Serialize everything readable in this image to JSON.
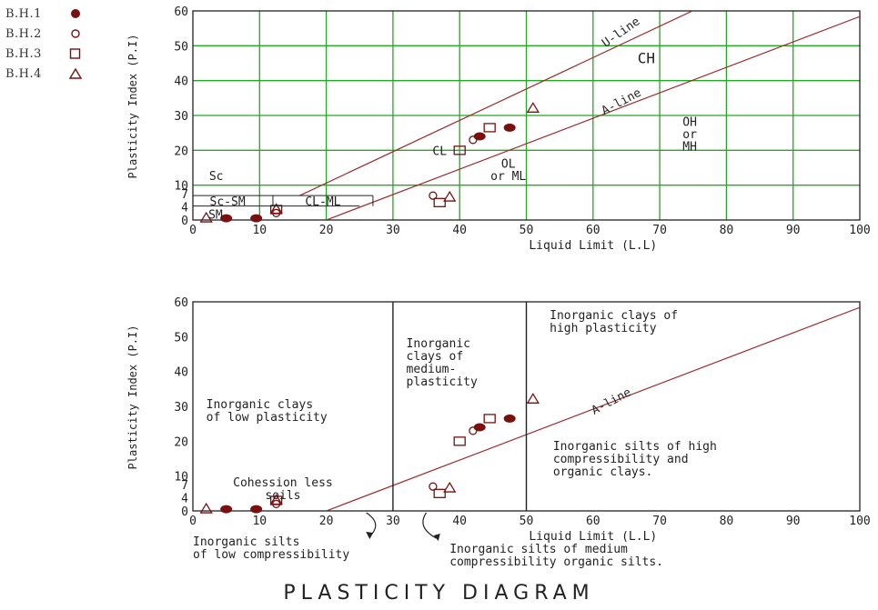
{
  "legend": [
    {
      "label": "B.H.1",
      "marker": "filled-circle"
    },
    {
      "label": "B.H.2",
      "marker": "circle"
    },
    {
      "label": "B.H.3",
      "marker": "square"
    },
    {
      "label": "B.H.4",
      "marker": "triangle"
    }
  ],
  "colors": {
    "marker": "#7a0f0f",
    "line": "#9b2a2a",
    "grid": "#22aa22",
    "frame": "#222222",
    "text": "#222222"
  },
  "diagram_title": "PLASTICITY DIAGRAM",
  "chart_data": [
    {
      "type": "scatter",
      "xlabel": "Liquid Limit (L.L)",
      "ylabel": "Plasticity Index (P.I)",
      "xlim": [
        0,
        100
      ],
      "ylim": [
        0,
        60
      ],
      "xticks": [
        "0",
        "10",
        "20",
        "30",
        "40",
        "50",
        "60",
        "70",
        "80",
        "90",
        "100"
      ],
      "yticks": [
        "0",
        "4",
        "7",
        "10",
        "20",
        "30",
        "40",
        "50",
        "60"
      ],
      "grid": true,
      "lines": [
        {
          "name": "U-line",
          "points": [
            [
              16,
              7
            ],
            [
              76,
              61
            ]
          ]
        },
        {
          "name": "A-line",
          "points": [
            [
              20,
              0
            ],
            [
              100,
              58.4
            ]
          ]
        }
      ],
      "labels": [
        "U-line",
        "CH",
        "A-line",
        "CL",
        "OH",
        "or",
        "MH",
        "OL",
        "or ML",
        "Sc",
        "Sc-SM",
        "CL-ML",
        "SM"
      ],
      "series": [
        {
          "name": "B.H.1",
          "points": [
            [
              5,
              0.5
            ],
            [
              9.5,
              0.5
            ],
            [
              43,
              24
            ],
            [
              47.5,
              26.5
            ]
          ]
        },
        {
          "name": "B.H.2",
          "points": [
            [
              12.5,
              2
            ],
            [
              36,
              7
            ],
            [
              42,
              23
            ]
          ]
        },
        {
          "name": "B.H.3",
          "points": [
            [
              12.5,
              3
            ],
            [
              37,
              5
            ],
            [
              40,
              20
            ],
            [
              44.5,
              26.5
            ]
          ]
        },
        {
          "name": "B.H.4",
          "points": [
            [
              2,
              0.5
            ],
            [
              12.5,
              3
            ],
            [
              38.5,
              6.5
            ],
            [
              51,
              32
            ]
          ]
        }
      ]
    },
    {
      "type": "scatter",
      "xlabel": "Liquid Limit (L.L)",
      "ylabel": "Plasticity Index (P.I)",
      "xlim": [
        0,
        100
      ],
      "ylim": [
        0,
        60
      ],
      "xticks": [
        "0",
        "10",
        "20",
        "30",
        "40",
        "50",
        "60",
        "70",
        "80",
        "90",
        "100"
      ],
      "yticks": [
        "0",
        "4",
        "7",
        "10",
        "20",
        "30",
        "40",
        "50",
        "60"
      ],
      "grid": false,
      "lines": [
        {
          "name": "A-line",
          "points": [
            [
              20,
              0
            ],
            [
              100,
              58.4
            ]
          ]
        }
      ],
      "dividers_x": [
        30,
        50
      ],
      "zone_labels": {
        "high_plasticity": [
          "Inorganic clays of",
          "high plasticity"
        ],
        "medium_plasticity": [
          "Inorganic",
          "clays of",
          "medium-",
          "plasticity"
        ],
        "low_plasticity": [
          "Inorganic clays",
          "of low plasticity"
        ],
        "cohesionless": [
          "Cohession less",
          "soils"
        ],
        "high_compress": [
          "Inorganic silts of high",
          "compressibility and",
          "organic clays."
        ],
        "low_compress": [
          "Inorganic silts",
          "of low compressibility"
        ],
        "medium_compress": [
          "Inorganic silts of medium",
          "compressibility organic silts."
        ]
      },
      "series": [
        {
          "name": "B.H.1",
          "points": [
            [
              5,
              0.5
            ],
            [
              9.5,
              0.5
            ],
            [
              43,
              24
            ],
            [
              47.5,
              26.5
            ]
          ]
        },
        {
          "name": "B.H.2",
          "points": [
            [
              12.5,
              2
            ],
            [
              36,
              7
            ],
            [
              42,
              23
            ]
          ]
        },
        {
          "name": "B.H.3",
          "points": [
            [
              12.5,
              3
            ],
            [
              37,
              5
            ],
            [
              40,
              20
            ],
            [
              44.5,
              26.5
            ]
          ]
        },
        {
          "name": "B.H.4",
          "points": [
            [
              2,
              0.5
            ],
            [
              12.5,
              3
            ],
            [
              38.5,
              6.5
            ],
            [
              51,
              32
            ]
          ]
        }
      ]
    }
  ]
}
